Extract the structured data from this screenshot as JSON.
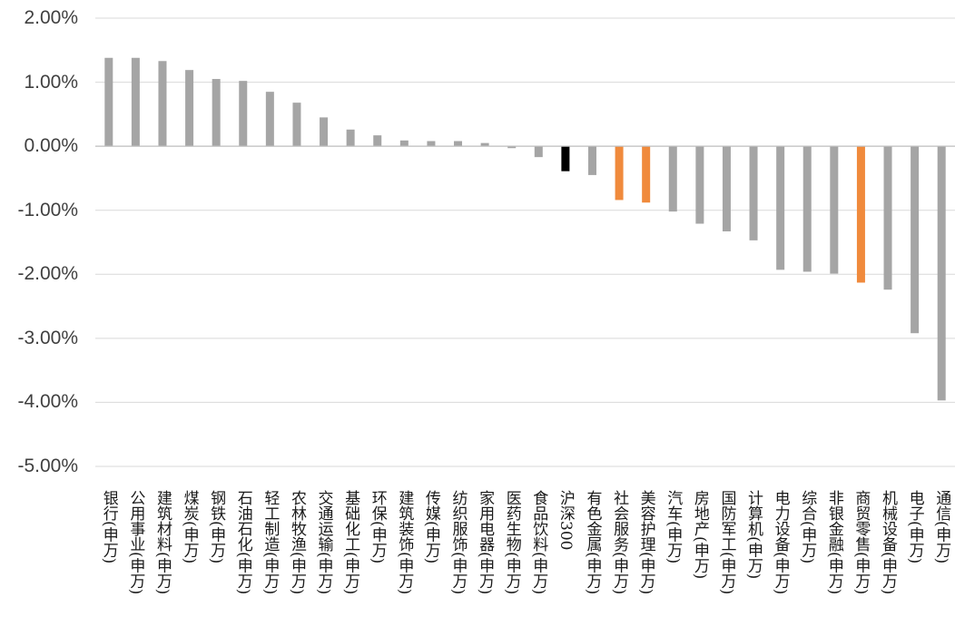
{
  "chart_data": {
    "type": "bar",
    "categories": [
      "银行(申万)",
      "公用事业(申万)",
      "建筑材料(申万)",
      "煤炭(申万)",
      "钢铁(申万)",
      "石油石化(申万)",
      "轻工制造(申万)",
      "农林牧渔(申万)",
      "交通运输(申万)",
      "基础化工(申万)",
      "环保(申万)",
      "建筑装饰(申万)",
      "传媒(申万)",
      "纺织服饰(申万)",
      "家用电器(申万)",
      "医药生物(申万)",
      "食品饮料(申万)",
      "沪深300",
      "有色金属(申万)",
      "社会服务(申万)",
      "美容护理(申万)",
      "汽车(申万)",
      "房地产(申万)",
      "国防军工(申万)",
      "计算机(申万)",
      "电力设备(申万)",
      "综合(申万)",
      "非银金融(申万)",
      "商贸零售(申万)",
      "机械设备(申万)",
      "电子(申万)",
      "通信(申万)"
    ],
    "values": [
      1.38,
      1.38,
      1.33,
      1.19,
      1.05,
      1.02,
      0.85,
      0.68,
      0.45,
      0.26,
      0.17,
      0.09,
      0.08,
      0.08,
      0.05,
      -0.03,
      -0.17,
      -0.39,
      -0.45,
      -0.84,
      -0.88,
      -1.02,
      -1.21,
      -1.33,
      -1.47,
      -1.93,
      -1.96,
      -1.99,
      -2.13,
      -2.24,
      -2.92,
      -3.97
    ],
    "colors": [
      "#a5a5a5",
      "#a5a5a5",
      "#a5a5a5",
      "#a5a5a5",
      "#a5a5a5",
      "#a5a5a5",
      "#a5a5a5",
      "#a5a5a5",
      "#a5a5a5",
      "#a5a5a5",
      "#a5a5a5",
      "#a5a5a5",
      "#a5a5a5",
      "#a5a5a5",
      "#a5a5a5",
      "#a5a5a5",
      "#a5a5a5",
      "#000000",
      "#a5a5a5",
      "#f08a3c",
      "#f08a3c",
      "#a5a5a5",
      "#a5a5a5",
      "#a5a5a5",
      "#a5a5a5",
      "#a5a5a5",
      "#a5a5a5",
      "#a5a5a5",
      "#f08a3c",
      "#a5a5a5",
      "#a5a5a5",
      "#a5a5a5"
    ],
    "ylim": [
      -5,
      2
    ],
    "yticks": [
      2,
      1,
      0,
      -1,
      -2,
      -3,
      -4,
      -5
    ],
    "y_tick_labels": [
      "2.00%",
      "1.00%",
      "0.00%",
      "-1.00%",
      "-2.00%",
      "-3.00%",
      "-4.00%",
      "-5.00%"
    ],
    "grid": true,
    "gridline_color": "#d9d9d9",
    "zero_line_color": "#bfbfbf"
  }
}
